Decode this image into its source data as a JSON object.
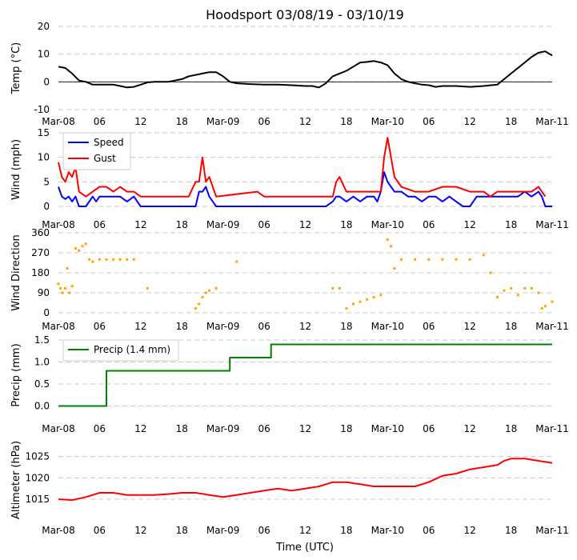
{
  "title": "Hoodsport 03/08/19 - 03/10/19",
  "xlabel": "Time (UTC)",
  "x_ticks": [
    "Mar-08",
    "06",
    "12",
    "18",
    "Mar-09",
    "06",
    "12",
    "18",
    "Mar-10",
    "06",
    "12",
    "18",
    "Mar-11"
  ],
  "x_range_hours": [
    0,
    72
  ],
  "chart_data": [
    {
      "type": "line",
      "id": "temp",
      "ylabel": "Temp ($^\\circ$C)",
      "ylabel_display": "Temp (°C)",
      "ylim": [
        -10,
        20
      ],
      "yticks": [
        -10,
        0,
        10,
        20
      ],
      "zero_line": true,
      "series": [
        {
          "name": "Temp",
          "color": "#000000",
          "x": [
            0,
            1,
            2,
            3,
            4,
            5,
            6,
            8,
            9,
            10,
            11,
            12,
            13,
            14,
            16,
            18,
            19,
            20,
            21,
            22,
            23,
            24,
            25,
            26,
            28,
            30,
            32,
            34,
            36,
            37,
            38,
            39,
            40,
            41,
            42,
            43,
            44,
            45,
            46,
            47,
            48,
            49,
            50,
            51,
            52,
            53,
            54,
            55,
            56,
            58,
            60,
            62,
            64,
            65,
            66,
            67,
            68,
            69,
            70,
            71,
            72
          ],
          "y": [
            5.5,
            5,
            3,
            0.5,
            0,
            -1,
            -1,
            -1,
            -1.5,
            -2,
            -1.8,
            -1,
            -0.2,
            0,
            0,
            1,
            2,
            2.5,
            3,
            3.5,
            3.5,
            2,
            0,
            -0.5,
            -0.8,
            -1,
            -1,
            -1.2,
            -1.5,
            -1.5,
            -2,
            -0.5,
            2,
            3,
            4,
            5.5,
            7,
            7.2,
            7.5,
            7,
            6,
            3,
            1,
            0,
            -0.5,
            -1,
            -1.2,
            -1.8,
            -1.5,
            -1.5,
            -1.8,
            -1.5,
            -1,
            1,
            3,
            5,
            7,
            9,
            10.5,
            11,
            9.5
          ]
        }
      ]
    },
    {
      "type": "line",
      "id": "wind",
      "ylabel": "Wind (mph)",
      "ylim": [
        0,
        15
      ],
      "yticks": [
        0,
        5,
        10,
        15
      ],
      "legend": {
        "position": "top-left"
      },
      "series": [
        {
          "name": "Speed",
          "color": "#0000ff",
          "x": [
            0,
            0.5,
            1,
            1.5,
            2,
            2.5,
            3,
            4,
            5,
            5.5,
            6,
            7,
            8,
            9,
            10,
            11,
            12,
            13,
            14,
            15,
            16,
            17,
            18,
            19,
            20,
            20.5,
            21,
            21.5,
            22,
            23,
            24,
            26,
            28,
            30,
            33,
            36,
            39,
            40,
            40.5,
            41,
            42,
            43,
            44,
            45,
            46,
            46.5,
            47,
            47.5,
            48,
            49,
            50,
            51,
            52,
            53,
            54,
            55,
            56,
            57,
            58,
            59,
            60,
            61,
            62,
            63,
            64,
            65,
            66,
            67,
            68,
            69,
            70,
            70.5,
            71,
            72
          ],
          "y": [
            4,
            2,
            1.5,
            2,
            1,
            2,
            0,
            0,
            2,
            1,
            2,
            2,
            2,
            2,
            1,
            2,
            0,
            0,
            0,
            0,
            0,
            0,
            0,
            0,
            0,
            3,
            3,
            4,
            2,
            0,
            0,
            0,
            0,
            0,
            0,
            0,
            0,
            1,
            2,
            2,
            1,
            2,
            1,
            2,
            2,
            1,
            3,
            7,
            5,
            3,
            3,
            2,
            2,
            1,
            2,
            2,
            1,
            2,
            1,
            0,
            0,
            2,
            2,
            2,
            2,
            2,
            2,
            2,
            3,
            2,
            3,
            2,
            0,
            0
          ]
        },
        {
          "name": "Gust",
          "color": "#ff0000",
          "x": [
            0,
            0.5,
            1,
            1.5,
            2,
            2.5,
            3,
            4,
            5,
            6,
            7,
            8,
            9,
            10,
            11,
            12,
            13,
            19,
            20,
            20.5,
            21,
            21.5,
            22,
            23,
            29,
            30,
            40,
            40.5,
            41,
            42,
            43,
            44,
            45,
            46,
            46.5,
            47,
            47.5,
            48,
            49,
            50,
            52,
            54,
            56,
            58,
            60,
            62,
            63,
            64,
            65,
            66,
            67,
            68,
            69,
            70,
            70.5,
            71
          ],
          "y": [
            9,
            6,
            5,
            7,
            6,
            8,
            3,
            2,
            3,
            4,
            4,
            3,
            4,
            3,
            3,
            2,
            2,
            2,
            5,
            5,
            10,
            5,
            6,
            2,
            3,
            2,
            2,
            5,
            6,
            3,
            3,
            3,
            3,
            3,
            3,
            3,
            10,
            14,
            6,
            4,
            3,
            3,
            4,
            4,
            3,
            3,
            2,
            3,
            3,
            3,
            3,
            3,
            3,
            4,
            3,
            2
          ]
        }
      ]
    },
    {
      "type": "scatter",
      "id": "direction",
      "ylabel": "Wind Direction",
      "ylim": [
        0,
        360
      ],
      "yticks": [
        0,
        90,
        180,
        270,
        360
      ],
      "series": [
        {
          "name": "Direction",
          "color": "#ffa500",
          "x": [
            0,
            0.3,
            0.6,
            1,
            1.3,
            1.6,
            2,
            2.5,
            3,
            3.5,
            4,
            4.5,
            5,
            6,
            7,
            8,
            9,
            10,
            11,
            13,
            20,
            20.5,
            21,
            21.5,
            22,
            23,
            26,
            40,
            41,
            42,
            43,
            44,
            45,
            46,
            47,
            48,
            48.5,
            49,
            50,
            52,
            54,
            56,
            58,
            60,
            62,
            63,
            64,
            65,
            66,
            67,
            68,
            69,
            70,
            70.5,
            71,
            72
          ],
          "y": [
            130,
            110,
            90,
            110,
            200,
            90,
            120,
            290,
            280,
            300,
            310,
            240,
            230,
            240,
            240,
            240,
            240,
            240,
            240,
            110,
            20,
            40,
            70,
            90,
            100,
            110,
            230,
            110,
            110,
            20,
            40,
            50,
            60,
            70,
            80,
            330,
            300,
            200,
            240,
            240,
            240,
            240,
            240,
            240,
            260,
            180,
            70,
            100,
            110,
            80,
            110,
            110,
            90,
            20,
            30,
            50
          ]
        }
      ]
    },
    {
      "type": "line",
      "id": "precip",
      "ylabel": "Precip (mm)",
      "ylim": [
        -0.1,
        1.5
      ],
      "yticks": [
        0.0,
        0.5,
        1.0,
        1.5
      ],
      "ytick_labels": [
        "0.0",
        "0.5",
        "1.0",
        "1.5"
      ],
      "legend": {
        "position": "top-left"
      },
      "series": [
        {
          "name": "Precip (1.4 mm)",
          "color": "#008000",
          "x": [
            0,
            7,
            7,
            25,
            25,
            31,
            31,
            72
          ],
          "y": [
            0,
            0,
            0.8,
            0.8,
            1.1,
            1.1,
            1.4,
            1.4
          ]
        }
      ]
    },
    {
      "type": "line",
      "id": "altimeter",
      "ylabel": "Altimeter (hPa)",
      "ylim": [
        1012,
        1027
      ],
      "yticks": [
        1015,
        1020,
        1025
      ],
      "series": [
        {
          "name": "Altimeter",
          "color": "#ff0000",
          "x": [
            0,
            2,
            4,
            5,
            6,
            8,
            10,
            12,
            14,
            16,
            18,
            20,
            22,
            24,
            26,
            28,
            30,
            32,
            34,
            36,
            38,
            40,
            42,
            44,
            46,
            48,
            50,
            52,
            54,
            56,
            58,
            60,
            62,
            64,
            65,
            66,
            68,
            70,
            72
          ],
          "y": [
            1015,
            1014.8,
            1015.5,
            1016,
            1016.5,
            1016.5,
            1016,
            1016,
            1016,
            1016.2,
            1016.5,
            1016.5,
            1016,
            1015.5,
            1016,
            1016.5,
            1017,
            1017.5,
            1017,
            1017.5,
            1018,
            1019,
            1019,
            1018.5,
            1018,
            1018,
            1018,
            1018,
            1019,
            1020.5,
            1021,
            1022,
            1022.5,
            1023,
            1024,
            1024.5,
            1024.5,
            1024,
            1023.5
          ]
        }
      ]
    }
  ]
}
